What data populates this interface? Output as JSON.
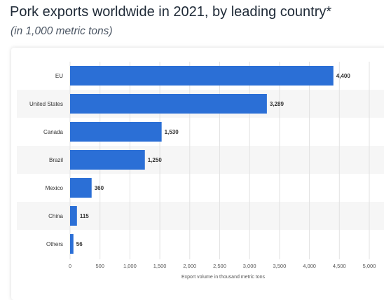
{
  "header": {
    "title": "Pork exports worldwide in 2021, by leading country*",
    "subtitle": "(in 1,000 metric tons)"
  },
  "chart_data": {
    "type": "bar",
    "orientation": "horizontal",
    "categories": [
      "EU",
      "United States",
      "Canada",
      "Brazil",
      "Mexico",
      "China",
      "Others"
    ],
    "values": [
      4400,
      3289,
      1530,
      1250,
      360,
      115,
      56
    ],
    "value_labels": [
      "4,400",
      "3,289",
      "1,530",
      "1,250",
      "360",
      "115",
      "56"
    ],
    "xlabel": "Export volume in thousand metric tons",
    "ylabel": "",
    "xlim": [
      0,
      5000
    ],
    "ticks": [
      0,
      500,
      1000,
      1500,
      2000,
      2500,
      3000,
      3500,
      4000,
      4500,
      5000
    ],
    "tick_labels": [
      "0",
      "500",
      "1,000",
      "1,500",
      "2,000",
      "2,500",
      "3,000",
      "3,500",
      "4,000",
      "4,500",
      "5,000"
    ],
    "grid": true,
    "bar_color": "#2b6fd6",
    "alt_row_color": "#f6f6f6"
  }
}
